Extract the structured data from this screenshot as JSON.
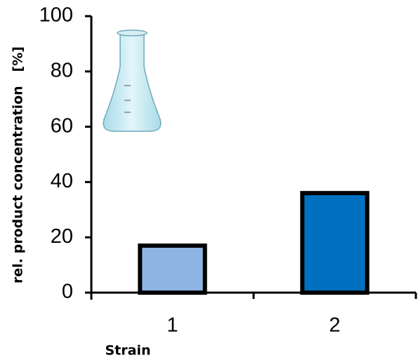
{
  "chart_data": {
    "type": "bar",
    "y_label": "rel. product concentration   [%]",
    "x_label": "Strain",
    "categories": [
      "1",
      "2"
    ],
    "values": [
      17,
      36
    ],
    "colors": [
      "#8db4e2",
      "#0070c0"
    ],
    "ylim": [
      0,
      100
    ],
    "yticks": [
      0,
      20,
      40,
      60,
      80,
      100
    ],
    "grid": false
  }
}
